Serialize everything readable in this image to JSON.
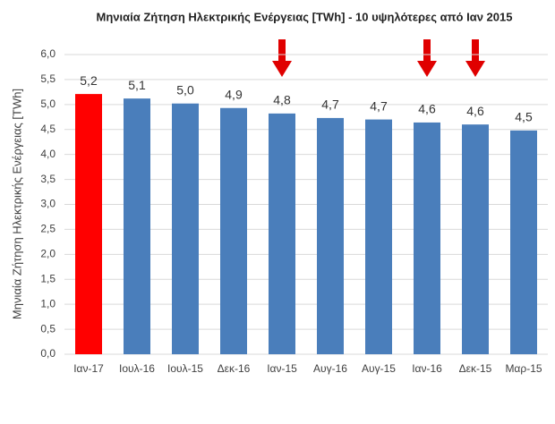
{
  "chart_data": {
    "type": "bar",
    "title": "Μηνιαία Ζήτηση Ηλεκτρικής Ενέργειας [TWh] - 10 υψηλότερες από Ιαν 2015",
    "y_label": "Μηνιαία Ζήτηση  Ηλεκτρικής Ενέργειας [TWh]",
    "categories": [
      "Ιαν-17",
      "Ιουλ-16",
      "Ιουλ-15",
      "Δεκ-16",
      "Ιαν-15",
      "Αυγ-16",
      "Αυγ-15",
      "Ιαν-16",
      "Δεκ-15",
      "Μαρ-15"
    ],
    "values": [
      5.21,
      5.12,
      5.02,
      4.93,
      4.82,
      4.73,
      4.7,
      4.64,
      4.6,
      4.48
    ],
    "value_labels": [
      "5,2",
      "5,1",
      "5,0",
      "4,9",
      "4,8",
      "4,7",
      "4,7",
      "4,6",
      "4,6",
      "4,5"
    ],
    "colors": [
      "#ff0000",
      "#4a7ebb",
      "#4a7ebb",
      "#4a7ebb",
      "#4a7ebb",
      "#4a7ebb",
      "#4a7ebb",
      "#4a7ebb",
      "#4a7ebb",
      "#4a7ebb"
    ],
    "ylim": [
      0,
      6
    ],
    "yticks": [
      {
        "value": 0,
        "label": "0,0"
      },
      {
        "value": 0.5,
        "label": "0,5"
      },
      {
        "value": 1,
        "label": "1,0"
      },
      {
        "value": 1.5,
        "label": "1,5"
      },
      {
        "value": 2,
        "label": "2,0"
      },
      {
        "value": 2.5,
        "label": "2,5"
      },
      {
        "value": 3,
        "label": "3,0"
      },
      {
        "value": 3.5,
        "label": "3,5"
      },
      {
        "value": 4,
        "label": "4,0"
      },
      {
        "value": 4.5,
        "label": "4,5"
      },
      {
        "value": 5,
        "label": "5,0"
      },
      {
        "value": 5.5,
        "label": "5,5"
      },
      {
        "value": 6,
        "label": "6,0"
      }
    ],
    "grid": true
  }
}
